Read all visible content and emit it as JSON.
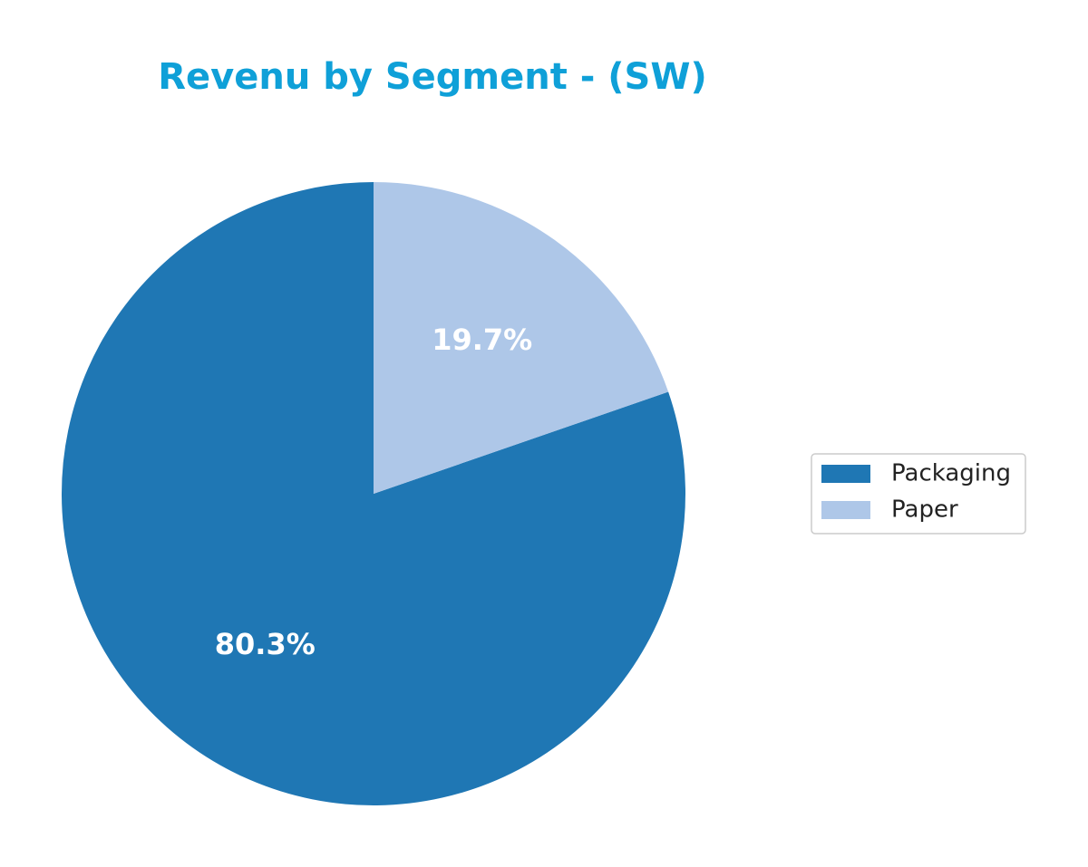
{
  "chart_data": {
    "type": "pie",
    "title": "Revenu by Segment - (SW)",
    "categories": [
      "Packaging",
      "Paper"
    ],
    "values": [
      80.3,
      19.7
    ],
    "value_labels": [
      "80.3%",
      "19.7%"
    ],
    "colors": [
      "#1f77b4",
      "#aec7e8"
    ],
    "legend": "right"
  }
}
